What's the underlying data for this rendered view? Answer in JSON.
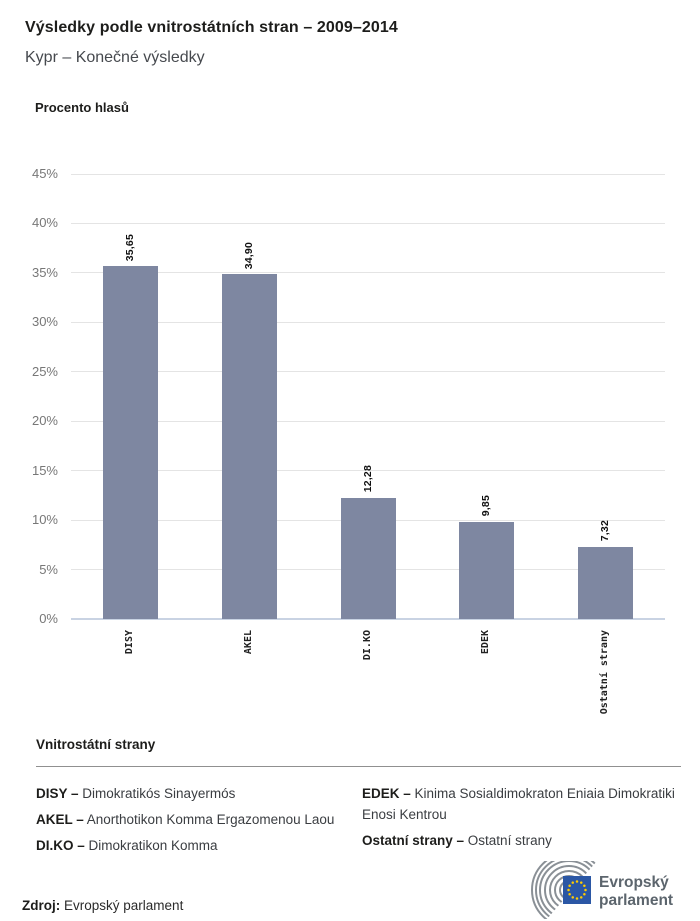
{
  "header": {
    "title": "Výsledky podle vnitrostátních stran – 2009–2014",
    "subtitle": "Kypr – Konečné výsledky"
  },
  "chart_data": {
    "type": "bar",
    "title": "Procento hlasů",
    "ylabel": "Procento hlasů",
    "xlabel": "",
    "categories": [
      "DISY",
      "AKEL",
      "DI.KO",
      "EDEK",
      "Ostatní strany"
    ],
    "values": [
      35.65,
      34.9,
      12.28,
      9.85,
      7.32
    ],
    "value_labels": [
      "35,65",
      "34,90",
      "12,28",
      "9,85",
      "7,32"
    ],
    "ylim": [
      0,
      45
    ],
    "ytick_step": 5,
    "ytick_labels": [
      "45%",
      "40%",
      "35%",
      "30%",
      "25%",
      "20%",
      "15%",
      "10%",
      "5%",
      "0%"
    ],
    "grid": "horizontal",
    "legend_position": "none"
  },
  "legend": {
    "heading": "Vnitrostátní strany",
    "separator": " – ",
    "entries": [
      {
        "name": "DISY",
        "desc": "Dimokratikós Sinayermós"
      },
      {
        "name": "AKEL",
        "desc": "Anorthotikon Komma Ergazomenou Laou"
      },
      {
        "name": "DI.KO",
        "desc": "Dimokratikon Komma"
      },
      {
        "name": "EDEK",
        "desc": "Kinima Sosialdimokraton Eniaia Dimokratiki Enosi Kentrou"
      },
      {
        "name": "Ostatní strany",
        "desc": "Ostatní strany"
      }
    ]
  },
  "footer": {
    "source_label": "Zdroj:",
    "source_value": "Evropský parlament",
    "logo": {
      "line1": "Evropský",
      "line2": "parlament"
    }
  },
  "colors": {
    "bar": "#7e87a1",
    "gridline": "#e4e4e4",
    "zero_line": "#c9d3e3",
    "tick_text": "#777777",
    "title_text": "#1d1d1b",
    "subtitle_text": "#46494e",
    "flag_blue": "#2b57a5",
    "star_yellow": "#ffcc00",
    "logo_gray": "#5c656d",
    "hemicycle_gray": "#8a9096"
  }
}
